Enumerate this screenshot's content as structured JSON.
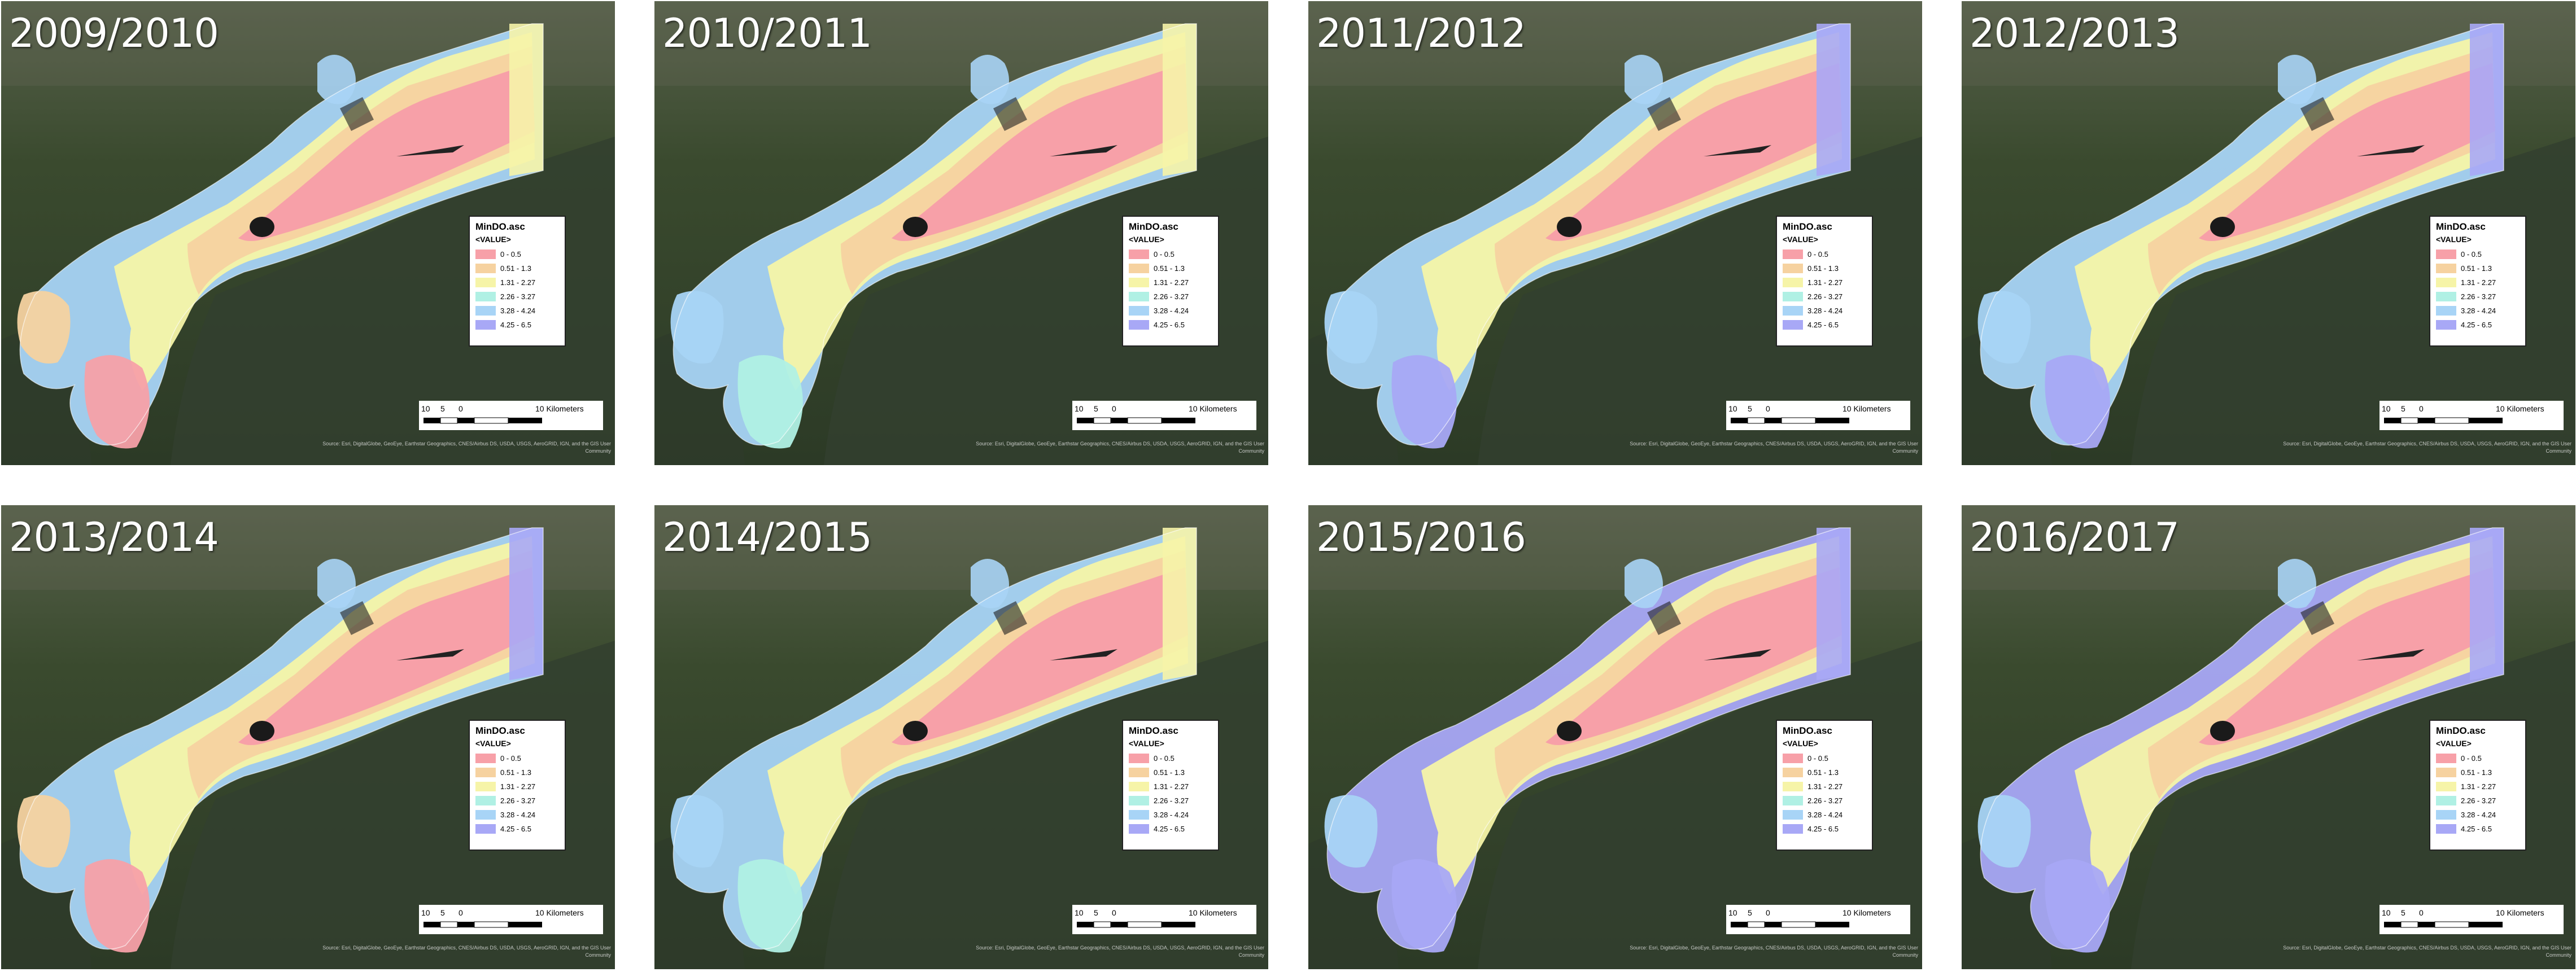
{
  "panels": [
    {
      "year": "2009/2010",
      "lower": "pink"
    },
    {
      "year": "2010/2011",
      "lower": "mixed"
    },
    {
      "year": "2011/2012",
      "lower": "blue"
    },
    {
      "year": "2012/2013",
      "lower": "blue"
    },
    {
      "year": "2013/2014",
      "lower": "pink"
    },
    {
      "year": "2014/2015",
      "lower": "mixed"
    },
    {
      "year": "2015/2016",
      "lower": "blue"
    },
    {
      "year": "2016/2017",
      "lower": "blue"
    }
  ],
  "legend": {
    "title": "MinDO.asc",
    "field": "<VALUE>",
    "classes": [
      {
        "label": "0 - 0.5",
        "color": "#f7a0a8"
      },
      {
        "label": "0.51 - 1.3",
        "color": "#f6d2a0"
      },
      {
        "label": "1.31 - 2.27",
        "color": "#f6f4a8"
      },
      {
        "label": "2.26 - 3.27",
        "color": "#b0f0e4"
      },
      {
        "label": "3.28 - 4.24",
        "color": "#a8d4f6"
      },
      {
        "label": "4.25 - 6.5",
        "color": "#a8a8f6"
      }
    ]
  },
  "scalebar": {
    "ticks": [
      "10",
      "5",
      "0",
      "10 Kilometers"
    ]
  },
  "credits": "Source: Esri, DigitalGlobe, GeoEye, Earthstar Geographics, CNES/Airbus DS, USDA, USGS, AeroGRID, IGN, and the GIS User Community",
  "colors": {
    "land": "#3a4a2c",
    "water": "#2e3a30",
    "island": "#1a1a1a"
  }
}
